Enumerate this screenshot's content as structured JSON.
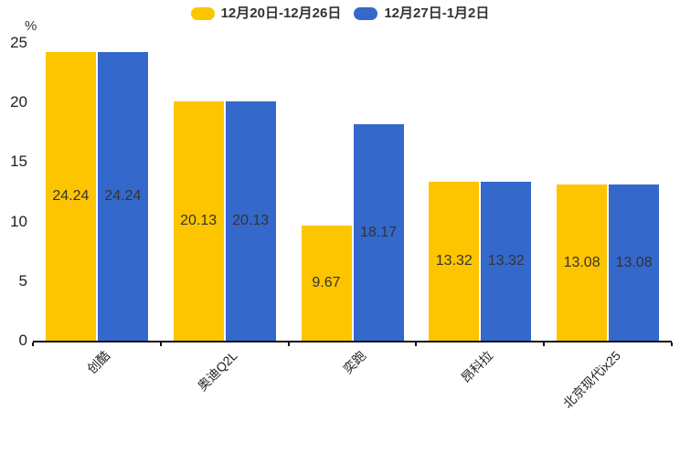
{
  "legend": {
    "items": [
      {
        "label": "12月20日-12月26日",
        "color": "#FDC500"
      },
      {
        "label": "12月27日-1月2日",
        "color": "#3468CB"
      }
    ]
  },
  "y_axis": {
    "unit": "%",
    "ticks": [
      0,
      5,
      10,
      15,
      20,
      25
    ]
  },
  "chart_data": {
    "type": "bar",
    "categories": [
      "创酷",
      "奥迪Q2L",
      "奕跑",
      "昂科拉",
      "北京现代ix25"
    ],
    "series": [
      {
        "name": "12月20日-12月26日",
        "color": "#FDC500",
        "values": [
          24.24,
          20.13,
          9.67,
          13.32,
          13.08
        ]
      },
      {
        "name": "12月27日-1月2日",
        "color": "#3468CB",
        "values": [
          24.24,
          20.13,
          18.17,
          13.32,
          13.08
        ]
      }
    ],
    "value_labels": [
      "24.24",
      "20.13",
      "9.67",
      "13.32",
      "13.08",
      "24.24",
      "20.13",
      "18.17",
      "13.32",
      "13.08"
    ],
    "title": "",
    "xlabel": "",
    "ylabel": "%",
    "ylim": [
      0,
      25
    ],
    "grid": false,
    "legend_position": "top"
  }
}
